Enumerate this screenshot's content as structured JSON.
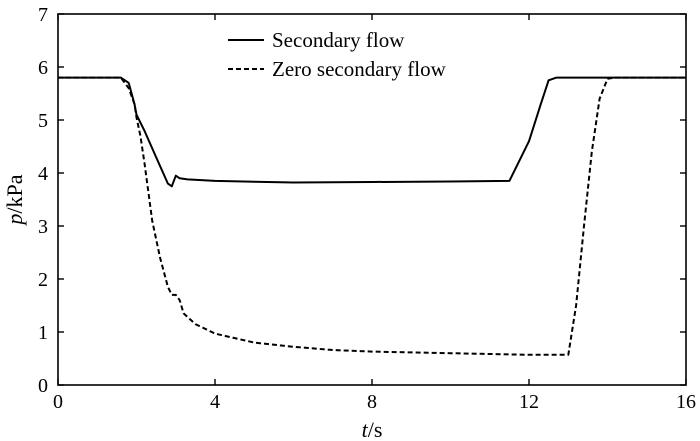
{
  "chart_data": {
    "type": "line",
    "title": "",
    "xlabel": {
      "var": "t",
      "unit": "/s"
    },
    "ylabel": {
      "var": "p",
      "unit": "/kPa"
    },
    "xlim": [
      0,
      16
    ],
    "ylim": [
      0,
      7
    ],
    "xticks": [
      0,
      4,
      8,
      12,
      16
    ],
    "yticks": [
      0,
      1,
      2,
      3,
      4,
      5,
      6,
      7
    ],
    "grid": false,
    "legend": "top-center",
    "series": [
      {
        "name": "Secondary flow",
        "style": "solid",
        "color": "#000000",
        "x": [
          0,
          1.6,
          1.8,
          1.95,
          2.0,
          2.2,
          2.5,
          2.8,
          2.9,
          3.0,
          3.1,
          3.3,
          4.0,
          6.0,
          8.0,
          10.0,
          11.5,
          12.0,
          12.3,
          12.5,
          12.7,
          16
        ],
        "y": [
          5.8,
          5.8,
          5.7,
          5.3,
          5.1,
          4.8,
          4.3,
          3.8,
          3.75,
          3.95,
          3.9,
          3.88,
          3.85,
          3.82,
          3.83,
          3.84,
          3.85,
          4.6,
          5.3,
          5.75,
          5.8,
          5.8
        ]
      },
      {
        "name": "Zero secondary flow",
        "style": "dashed",
        "color": "#000000",
        "x": [
          0,
          1.6,
          1.8,
          1.95,
          2.0,
          2.1,
          2.2,
          2.3,
          2.4,
          2.6,
          2.8,
          2.9,
          3.0,
          3.1,
          3.2,
          3.5,
          4.0,
          5.0,
          6.0,
          7.0,
          8.0,
          10.0,
          12.0,
          13.0,
          13.2,
          13.4,
          13.6,
          13.8,
          14.0,
          14.2,
          16
        ],
        "y": [
          5.8,
          5.8,
          5.6,
          5.3,
          5.05,
          4.7,
          4.2,
          3.65,
          3.1,
          2.4,
          1.85,
          1.7,
          1.7,
          1.6,
          1.35,
          1.15,
          0.97,
          0.8,
          0.72,
          0.66,
          0.63,
          0.6,
          0.57,
          0.57,
          1.5,
          3.0,
          4.4,
          5.4,
          5.78,
          5.8,
          5.8
        ]
      }
    ]
  }
}
